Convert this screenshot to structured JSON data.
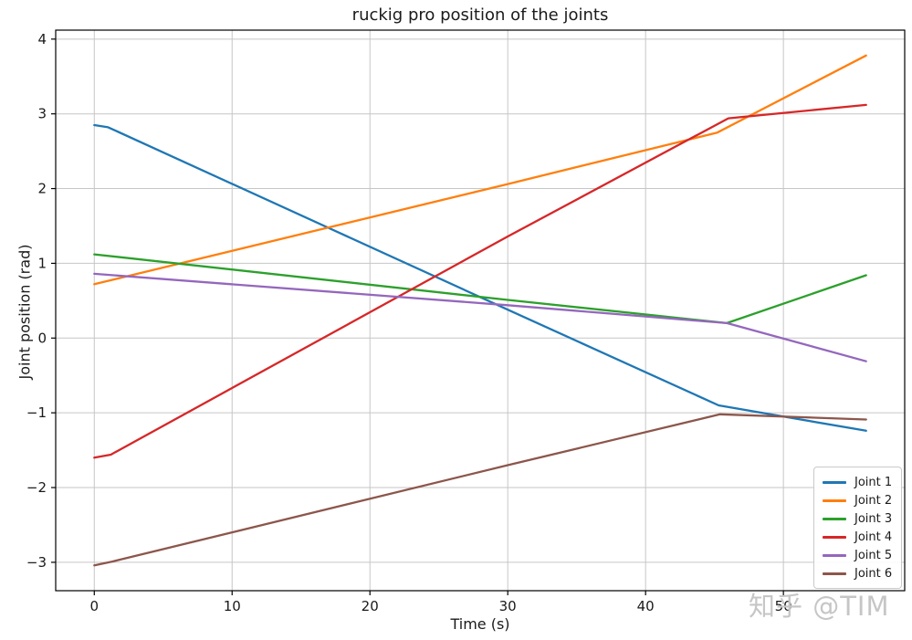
{
  "watermark": "知乎 @TIM",
  "chart_data": {
    "type": "line",
    "title": "ruckig pro position of the joints",
    "xlabel": "Time (s)",
    "ylabel": "Joint position (rad)",
    "xlim": [
      -2.8,
      58.8
    ],
    "ylim": [
      -3.38,
      4.12
    ],
    "xticks": [
      0,
      10,
      20,
      30,
      40,
      50
    ],
    "xticklabels": [
      "0",
      "10",
      "20",
      "30",
      "40",
      "50"
    ],
    "yticks": [
      -3,
      -2,
      -1,
      0,
      1,
      2,
      3,
      4
    ],
    "yticklabels": [
      "−3",
      "−2",
      "−1",
      "0",
      "1",
      "2",
      "3",
      "4"
    ],
    "grid": true,
    "grid_color": "#c6c6c6",
    "spine_color": "#000000",
    "legend_position": "lower right",
    "series": [
      {
        "name": "Joint 1",
        "color": "#1f77b4",
        "points": [
          [
            0,
            2.85
          ],
          [
            1,
            2.82
          ],
          [
            30,
            0.38
          ],
          [
            45.3,
            -0.9
          ],
          [
            56,
            -1.24
          ]
        ]
      },
      {
        "name": "Joint 2",
        "color": "#ff7f0e",
        "points": [
          [
            0,
            0.72
          ],
          [
            30,
            2.06
          ],
          [
            45.2,
            2.75
          ],
          [
            56,
            3.78
          ]
        ]
      },
      {
        "name": "Joint 3",
        "color": "#2ca02c",
        "points": [
          [
            0,
            1.12
          ],
          [
            30,
            0.51
          ],
          [
            45.9,
            0.2
          ],
          [
            56,
            0.84
          ]
        ]
      },
      {
        "name": "Joint 4",
        "color": "#d62728",
        "points": [
          [
            0,
            -1.6
          ],
          [
            1.2,
            -1.56
          ],
          [
            30,
            1.36
          ],
          [
            46,
            2.94
          ],
          [
            56,
            3.12
          ]
        ]
      },
      {
        "name": "Joint 5",
        "color": "#9467bd",
        "points": [
          [
            0,
            0.86
          ],
          [
            30,
            0.44
          ],
          [
            45.9,
            0.2
          ],
          [
            56,
            -0.31
          ]
        ]
      },
      {
        "name": "Joint 6",
        "color": "#8c564b",
        "points": [
          [
            0,
            -3.04
          ],
          [
            1.3,
            -2.99
          ],
          [
            30,
            -1.7
          ],
          [
            45.4,
            -1.02
          ],
          [
            56,
            -1.09
          ]
        ]
      }
    ]
  }
}
